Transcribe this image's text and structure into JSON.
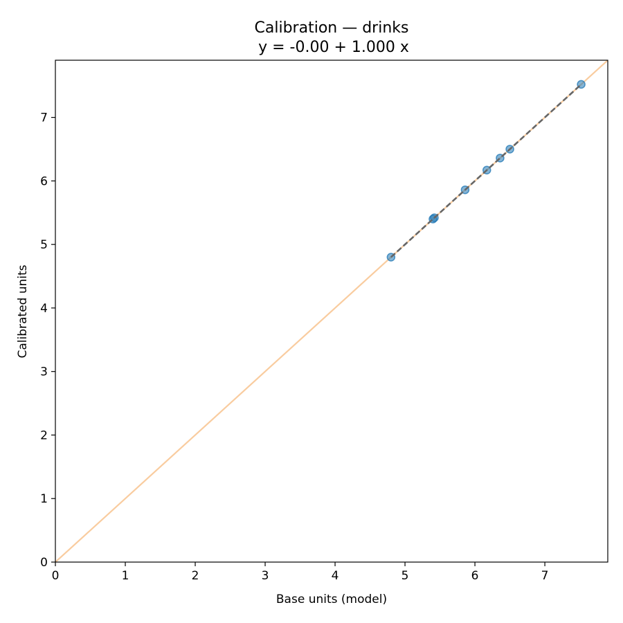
{
  "chart_data": {
    "type": "scatter",
    "title": "Calibration — drinks",
    "subtitle": "y = -0.00 + 1.000 x",
    "xlabel": "Base units (model)",
    "ylabel": "Calibrated units",
    "xlim": [
      0,
      7.9
    ],
    "ylim": [
      0,
      7.9
    ],
    "xticks": [
      "0",
      "1",
      "2",
      "3",
      "4",
      "5",
      "6",
      "7"
    ],
    "yticks": [
      "0",
      "1",
      "2",
      "3",
      "4",
      "5",
      "6",
      "7"
    ],
    "grid": false,
    "colors": {
      "points": "#1f77b4",
      "fit_line": "#666666",
      "identity_line": "#f9cc9f"
    },
    "identity_line": {
      "x": [
        0,
        7.9
      ],
      "y": [
        0,
        7.9
      ]
    },
    "fit_line": {
      "x": [
        4.8,
        7.52
      ],
      "y": [
        4.8,
        7.52
      ]
    },
    "points": {
      "x": [
        4.8,
        5.4,
        5.42,
        5.86,
        6.17,
        6.36,
        6.5,
        7.52
      ],
      "y": [
        4.8,
        5.4,
        5.42,
        5.86,
        6.17,
        6.36,
        6.5,
        7.52
      ]
    }
  }
}
